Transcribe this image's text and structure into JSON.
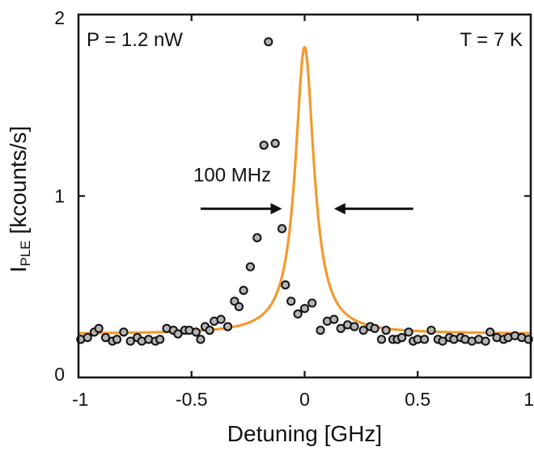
{
  "chart_data": {
    "type": "scatter",
    "xlabel": "Detuning [GHz]",
    "ylabel": "I",
    "ylabel_subscript": "PLE",
    "ylabel_unit": " [kcounts/s]",
    "xlim": [
      -1,
      1
    ],
    "ylim": [
      0,
      2
    ],
    "x_ticks": [
      -1,
      -0.5,
      0,
      0.5,
      1
    ],
    "x_tick_labels": [
      "-1",
      "-0.5",
      "0",
      "0.5",
      "1"
    ],
    "y_ticks": [
      0,
      1,
      2
    ],
    "y_tick_labels": [
      "0",
      "1",
      "2"
    ],
    "grid": false,
    "annotations": {
      "power": "P = 1.2 nW",
      "temperature": "T = 7 K",
      "linewidth": "100 MHz"
    },
    "linewidth_arrows": {
      "left_tail_x": -0.46,
      "left_head_x": -0.1,
      "right_tail_x": 0.48,
      "right_head_x": 0.13,
      "y": 0.93
    },
    "colors": {
      "fit": "#F29A2E",
      "marker_face": "#B4B4B4",
      "marker_edge": "#111111",
      "axes": "#111111"
    },
    "series": [
      {
        "kind": "points",
        "x": [
          -0.99,
          -0.96,
          -0.93,
          -0.91,
          -0.88,
          -0.85,
          -0.83,
          -0.8,
          -0.77,
          -0.74,
          -0.72,
          -0.69,
          -0.66,
          -0.64,
          -0.61,
          -0.58,
          -0.56,
          -0.53,
          -0.51,
          -0.48,
          -0.46,
          -0.44,
          -0.42,
          -0.4,
          -0.37,
          -0.34,
          -0.31,
          -0.29,
          -0.27,
          -0.24,
          -0.21,
          -0.18,
          -0.16,
          -0.13,
          -0.1,
          -0.085,
          -0.06,
          -0.03,
          0.0,
          0.033,
          0.07,
          0.1,
          0.13,
          0.16,
          0.19,
          0.22,
          0.26,
          0.29,
          0.31,
          0.34,
          0.36,
          0.39,
          0.41,
          0.43,
          0.46,
          0.48,
          0.5,
          0.53,
          0.56,
          0.59,
          0.61,
          0.64,
          0.66,
          0.69,
          0.71,
          0.74,
          0.77,
          0.8,
          0.82,
          0.85,
          0.88,
          0.9,
          0.93,
          0.96,
          0.99
        ],
        "y": [
          0.21,
          0.22,
          0.25,
          0.27,
          0.22,
          0.2,
          0.21,
          0.25,
          0.2,
          0.22,
          0.2,
          0.21,
          0.2,
          0.21,
          0.27,
          0.26,
          0.24,
          0.26,
          0.26,
          0.25,
          0.21,
          0.28,
          0.26,
          0.31,
          0.32,
          0.28,
          0.42,
          0.39,
          0.48,
          0.61,
          0.77,
          1.28,
          1.85,
          1.29,
          0.82,
          0.51,
          0.42,
          0.35,
          0.38,
          0.41,
          0.26,
          0.31,
          0.32,
          0.27,
          0.29,
          0.28,
          0.26,
          0.28,
          0.27,
          0.21,
          0.26,
          0.21,
          0.21,
          0.22,
          0.25,
          0.2,
          0.21,
          0.21,
          0.26,
          0.21,
          0.2,
          0.22,
          0.21,
          0.22,
          0.21,
          0.2,
          0.21,
          0.2,
          0.25,
          0.22,
          0.21,
          0.22,
          0.23,
          0.22,
          0.21
        ]
      },
      {
        "kind": "lorentzian-fit",
        "baseline": 0.24,
        "amplitude": 1.58,
        "center": 0.0,
        "fwhm": 0.1
      }
    ]
  }
}
